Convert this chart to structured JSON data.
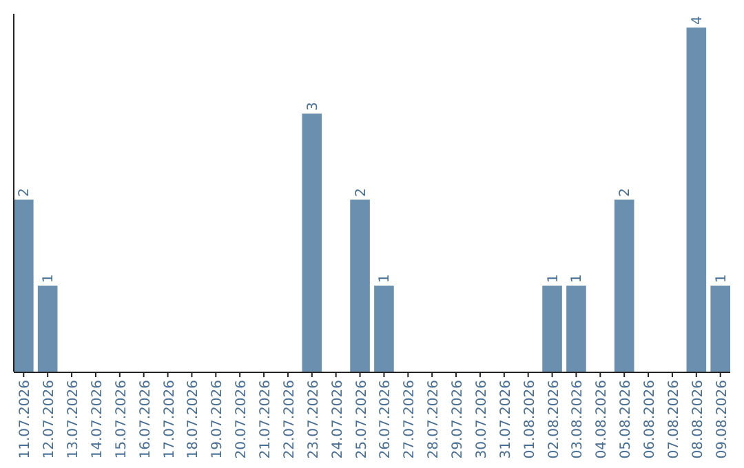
{
  "chart_data": {
    "type": "bar",
    "categories": [
      "11.07.2026",
      "12.07.2026",
      "13.07.2026",
      "14.07.2026",
      "15.07.2026",
      "16.07.2026",
      "17.07.2026",
      "18.07.2026",
      "19.07.2026",
      "20.07.2026",
      "21.07.2026",
      "22.07.2026",
      "23.07.2026",
      "24.07.2026",
      "25.07.2026",
      "26.07.2026",
      "27.07.2026",
      "28.07.2026",
      "29.07.2026",
      "30.07.2026",
      "31.07.2026",
      "01.08.2026",
      "02.08.2026",
      "03.08.2026",
      "04.08.2026",
      "05.08.2026",
      "06.08.2026",
      "07.08.2026",
      "08.08.2026",
      "09.08.2026"
    ],
    "values": [
      2,
      1,
      0,
      0,
      0,
      0,
      0,
      0,
      0,
      0,
      0,
      0,
      3,
      0,
      2,
      1,
      0,
      0,
      0,
      0,
      0,
      0,
      1,
      1,
      0,
      2,
      0,
      0,
      4,
      1
    ],
    "value_labels": [
      "2",
      "1",
      null,
      null,
      null,
      null,
      null,
      null,
      null,
      null,
      null,
      null,
      "3",
      null,
      "2",
      "1",
      null,
      null,
      null,
      null,
      null,
      null,
      "1",
      "1",
      null,
      "2",
      null,
      null,
      "4",
      "1"
    ],
    "color": "#6b8fae",
    "tick_labels": "x"
  }
}
